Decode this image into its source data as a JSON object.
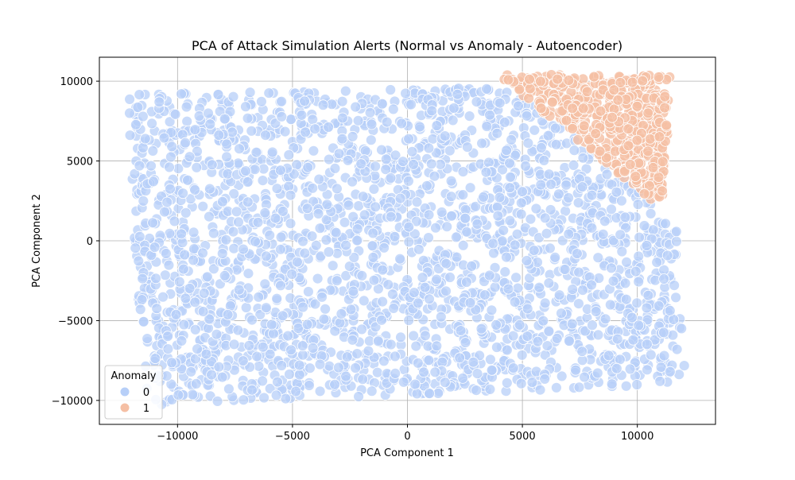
{
  "chart_data": {
    "type": "scatter",
    "title": "PCA of Attack Simulation Alerts (Normal vs Anomaly - Autoencoder)",
    "xlabel": "PCA Component 1",
    "ylabel": "PCA Component 2",
    "xlim": [
      -13400,
      13400
    ],
    "ylim": [
      -11500,
      11500
    ],
    "xticks": [
      -10000,
      -5000,
      0,
      5000,
      10000
    ],
    "xtick_labels": [
      "−10000",
      "−5000",
      "0",
      "5000",
      "10000"
    ],
    "yticks": [
      -10000,
      -5000,
      0,
      5000,
      10000
    ],
    "ytick_labels": [
      "−10000",
      "−5000",
      "0",
      "5000",
      "10000"
    ],
    "grid": true,
    "legend": {
      "title": "Anomaly",
      "placement": "lower-left",
      "entries": [
        {
          "label": "0",
          "color": "#b7cff8"
        },
        {
          "label": "1",
          "color": "#f5bfa4"
        }
      ]
    },
    "series": [
      {
        "name": "0",
        "color": "#b7cff8",
        "description_region": {
          "corners": [
            [
              -12200,
              9200
            ],
            [
              11400,
              9800
            ],
            [
              12100,
              -9000
            ],
            [
              -11500,
              -10300
            ]
          ]
        }
      },
      {
        "name": "1",
        "color": "#f5bfa4",
        "description_region": {
          "corners": [
            [
              4000,
              10000
            ],
            [
              11000,
              10300
            ],
            [
              11500,
              1200
            ],
            [
              7000,
              6000
            ]
          ]
        }
      }
    ]
  }
}
